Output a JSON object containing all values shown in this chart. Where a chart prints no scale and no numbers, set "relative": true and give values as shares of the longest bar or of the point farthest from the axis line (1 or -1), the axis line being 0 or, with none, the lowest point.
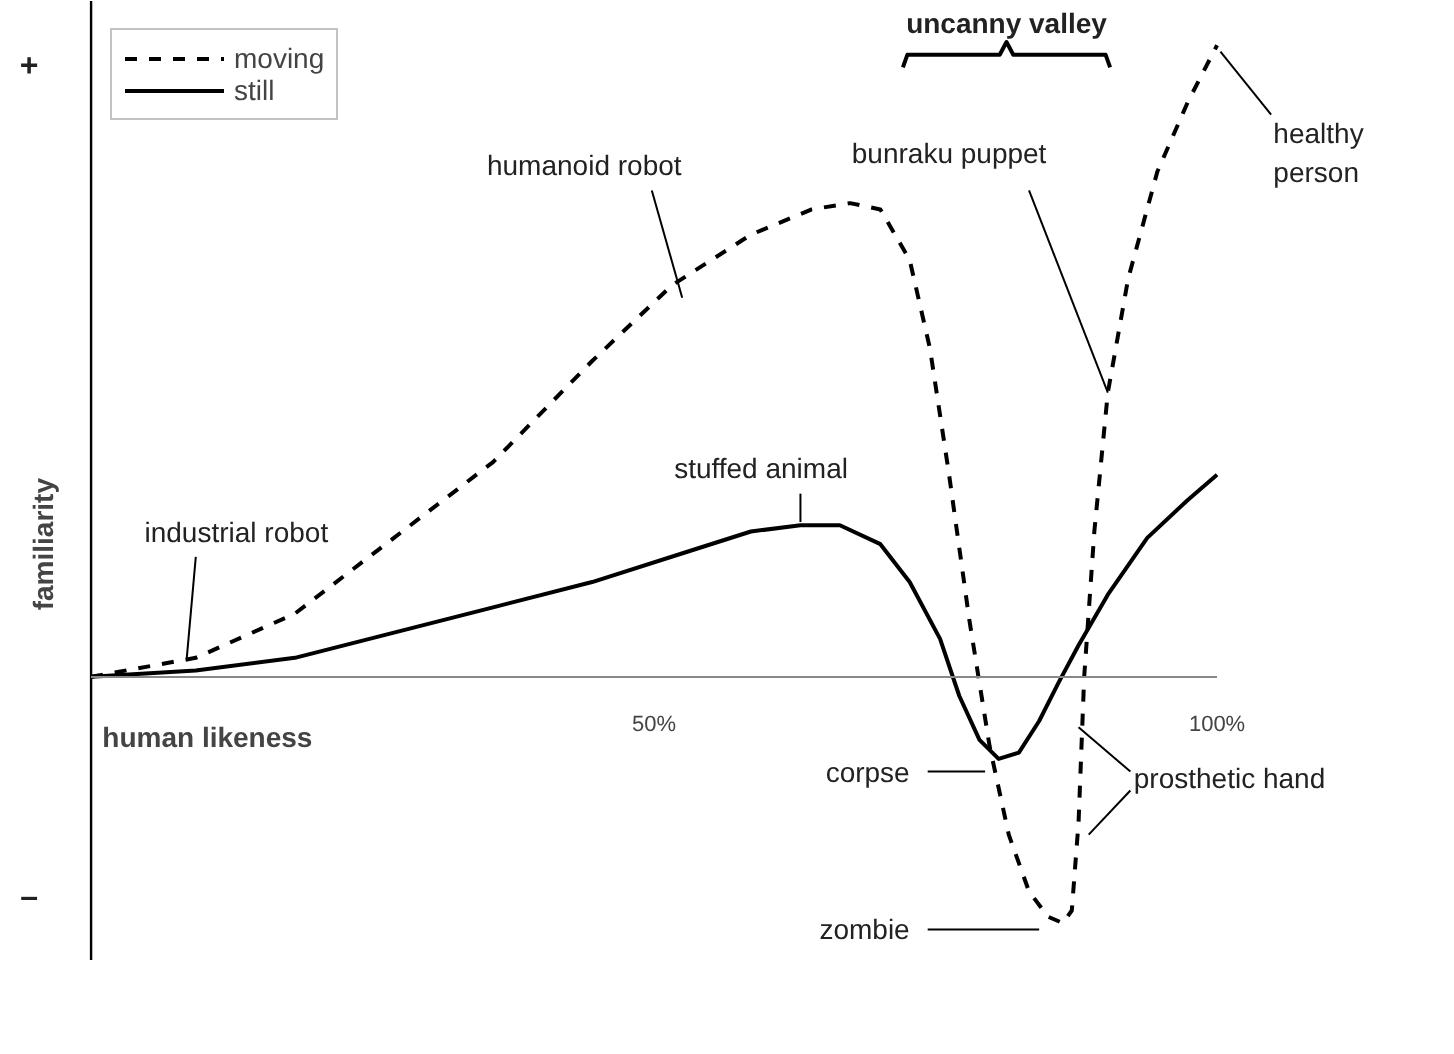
{
  "chart_data": {
    "type": "line",
    "relative": true,
    "xlabel": "human likeness",
    "ylabel": "familiarity",
    "xlim": [
      0,
      100
    ],
    "xticks": [
      {
        "value": 50,
        "label": "50%"
      },
      {
        "value": 100,
        "label": "100%"
      }
    ],
    "legend": "top left",
    "grid": false,
    "marker": "none",
    "series": [
      {
        "name": "moving",
        "color": "#000000",
        "line_style": "dashed",
        "x": [
          0,
          9.3,
          18.1,
          26.9,
          35.7,
          44.5,
          51.6,
          58.6,
          64.0,
          67.4,
          70.1,
          72.7,
          74.5,
          76.2,
          78.0,
          79.8,
          81.5,
          83.3,
          85.0,
          86.3,
          87.1,
          87.7,
          88.2,
          89.1,
          90.3,
          92.1,
          94.7,
          97.4,
          100
        ],
        "values": [
          0,
          0.03,
          0.1,
          0.22,
          0.34,
          0.5,
          0.62,
          0.7,
          0.74,
          0.75,
          0.74,
          0.66,
          0.52,
          0.32,
          0.09,
          -0.11,
          -0.25,
          -0.34,
          -0.38,
          -0.39,
          -0.37,
          -0.23,
          0.0,
          0.23,
          0.45,
          0.63,
          0.8,
          0.91,
          1.0
        ]
      },
      {
        "name": "still",
        "color": "#000000",
        "line_style": "solid",
        "x": [
          0,
          9.3,
          18.1,
          26.9,
          35.7,
          44.5,
          53.3,
          58.6,
          63.0,
          66.5,
          70.1,
          72.7,
          75.4,
          77.1,
          78.9,
          80.6,
          82.4,
          84.2,
          85.9,
          87.7,
          90.3,
          93.8,
          97.4,
          100
        ],
        "values": [
          0,
          0.01,
          0.03,
          0.07,
          0.11,
          0.15,
          0.2,
          0.23,
          0.24,
          0.24,
          0.21,
          0.15,
          0.06,
          -0.03,
          -0.1,
          -0.13,
          -0.12,
          -0.07,
          -0.01,
          0.05,
          0.13,
          0.22,
          0.28,
          0.32
        ]
      }
    ],
    "annotations": [
      "+",
      "–",
      "uncanny valley",
      "industrial robot",
      "humanoid robot",
      "stuffed animal",
      "bunraku puppet",
      "healthy person",
      "corpse",
      "zombie",
      "prosthetic hand"
    ]
  }
}
